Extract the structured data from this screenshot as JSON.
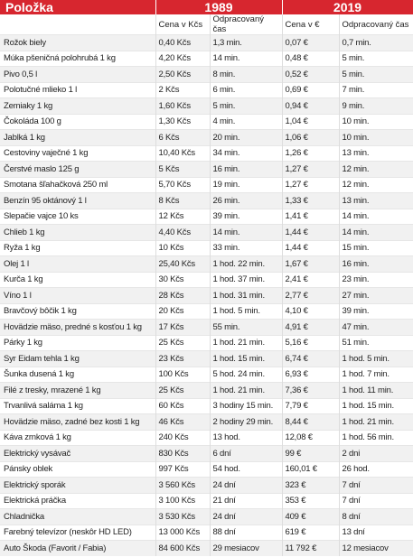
{
  "header": {
    "title": "Položka",
    "year_1989": "1989",
    "year_2019": "2019"
  },
  "subheader": [
    "Cena v Kčs",
    "Odpracovaný čas",
    "Cena v €",
    "Odpracovaný čas"
  ],
  "table": {
    "rows": [
      [
        "Rožok biely",
        "0,40 Kčs",
        "1,3 min.",
        "0,07 €",
        "0,7 min."
      ],
      [
        "Múka pšeničná polohrubá 1 kg",
        "4,20 Kčs",
        "14 min.",
        "0,48 €",
        "5 min."
      ],
      [
        "Pivo 0,5 l",
        "2,50 Kčs",
        "8 min.",
        "0,52 €",
        "5 min."
      ],
      [
        "Polotučné mlieko 1 l",
        "2 Kčs",
        "6 min.",
        "0,69 €",
        "7 min."
      ],
      [
        "Zemiaky 1 kg",
        "1,60 Kčs",
        "5 min.",
        "0,94 €",
        "9 min."
      ],
      [
        "Čokoláda 100 g",
        "1,30 Kčs",
        "4 min.",
        "1,04 €",
        "10 min."
      ],
      [
        "Jablká 1 kg",
        "6 Kčs",
        "20 min.",
        "1,06 €",
        "10 min."
      ],
      [
        "Cestoviny vaječné 1 kg",
        "10,40 Kčs",
        "34 min.",
        "1,26 €",
        "13 min."
      ],
      [
        "Čerstvé maslo 125 g",
        "5 Kčs",
        "16 min.",
        "1,27 €",
        "12 min."
      ],
      [
        "Smotana šľahačková 250 ml",
        "5,70 Kčs",
        "19 min.",
        "1,27 €",
        "12 min."
      ],
      [
        "Benzín 95 oktánový 1 l",
        "8 Kčs",
        "26 min.",
        "1,33 €",
        "13 min."
      ],
      [
        "Slepačie vajce 10 ks",
        "12 Kčs",
        "39 min.",
        "1,41 €",
        "14 min."
      ],
      [
        "Chlieb 1 kg",
        "4,40 Kčs",
        "14 min.",
        "1,44 €",
        "14 min."
      ],
      [
        "Ryža 1 kg",
        "10 Kčs",
        "33 min.",
        "1,44 €",
        "15 min."
      ],
      [
        "Olej 1 l",
        "25,40 Kčs",
        "1 hod. 22 min.",
        "1,67 €",
        "16 min."
      ],
      [
        "Kurča 1 kg",
        "30 Kčs",
        "1 hod. 37 min.",
        "2,41 €",
        "23 min."
      ],
      [
        "Víno 1 l",
        "28 Kčs",
        "1 hod. 31 min.",
        "2,77 €",
        "27 min."
      ],
      [
        "Bravčový bôčik 1 kg",
        "20 Kčs",
        "1 hod. 5 min.",
        "4,10 €",
        "39 min."
      ],
      [
        "Hovädzie mäso, predné s kosťou 1 kg",
        "17 Kčs",
        "55 min.",
        "4,91 €",
        "47 min."
      ],
      [
        "Párky 1 kg",
        "25 Kčs",
        "1 hod. 21 min.",
        "5,16 €",
        "51 min."
      ],
      [
        "Syr Eidam tehla 1 kg",
        "23 Kčs",
        "1 hod. 15 min.",
        "6,74 €",
        "1 hod. 5 min."
      ],
      [
        "Šunka dusená 1 kg",
        "100 Kčs",
        "5 hod. 24 min.",
        "6,93 €",
        "1 hod. 7 min."
      ],
      [
        "Filé z tresky, mrazené 1 kg",
        "25 Kčs",
        "1 hod. 21 min.",
        "7,36 €",
        "1 hod. 11 min."
      ],
      [
        "Trvanlivá saláma 1 kg",
        "60 Kčs",
        "3 hodiny 15 min.",
        "7,79 €",
        "1 hod. 15 min."
      ],
      [
        "Hovädzie mäso, zadné bez kosti 1 kg",
        "46 Kčs",
        "2 hodiny 29 min.",
        "8,44 €",
        "1 hod. 21 min."
      ],
      [
        "Káva zrnková 1 kg",
        "240 Kčs",
        "13 hod.",
        "12,08 €",
        "1 hod. 56 min."
      ],
      [
        "Elektrický vysávač",
        "830 Kčs",
        "6 dní",
        "99 €",
        "2 dni"
      ],
      [
        "Pánsky oblek",
        "997 Kčs",
        "54 hod.",
        "160,01 €",
        "26 hod."
      ],
      [
        "Elektrický sporák",
        "3 560 Kčs",
        "24 dní",
        "323 €",
        "7 dní"
      ],
      [
        "Elektrická práčka",
        "3 100 Kčs",
        "21 dní",
        "353 €",
        "7 dní"
      ],
      [
        "Chladnička",
        "3 530 Kčs",
        "24 dní",
        "409 €",
        "8 dní"
      ],
      [
        "Farebný televízor (neskôr HD LED)",
        "13 000 Kčs",
        "88 dní",
        "619 €",
        "13 dní"
      ],
      [
        "Auto Škoda (Favorit / Fabia)",
        "84 600 Kčs",
        "29 mesiacov",
        "11 792 €",
        "12 mesiacov"
      ]
    ]
  }
}
